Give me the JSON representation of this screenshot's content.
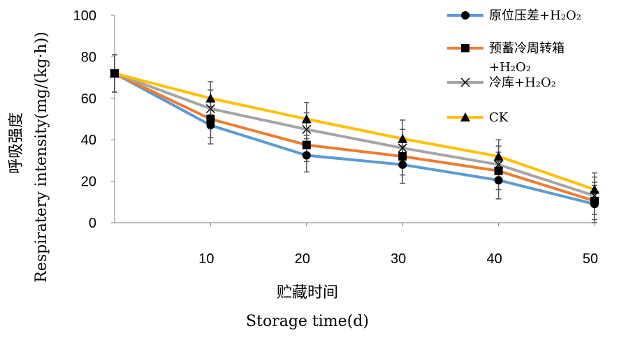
{
  "chart_data": {
    "type": "line",
    "x": [
      0,
      10,
      20,
      30,
      40,
      50
    ],
    "x_ticks": [
      "10",
      "20",
      "30",
      "40",
      "50"
    ],
    "x_tick_values": [
      10,
      20,
      30,
      40,
      50
    ],
    "y_ticks": [
      "0",
      "20",
      "40",
      "60",
      "80",
      "100"
    ],
    "y_tick_values": [
      0,
      20,
      40,
      60,
      80,
      100
    ],
    "xlim": [
      0,
      50
    ],
    "ylim": [
      0,
      100
    ],
    "xlabel_cn": "贮藏时间",
    "xlabel_en": "Storage time(d)",
    "ylabel_cn": "呼吸强度",
    "ylabel_en": "Respiratery intensity(mg/(kg·h))",
    "grid": false,
    "legend_position": "top-right",
    "series": [
      {
        "name": "原位压差+H₂O₂",
        "color": "#5B9BD5",
        "marker": "circle",
        "values": [
          72,
          47,
          32.5,
          28,
          20.5,
          9
        ],
        "errors": [
          9,
          9,
          8,
          9,
          9,
          9
        ]
      },
      {
        "name": "预蓄冷周转箱+H₂O₂",
        "color": "#ED7D31",
        "marker": "square",
        "values": [
          72,
          50,
          37.5,
          32,
          25,
          10.5
        ],
        "errors": [
          9,
          9,
          8,
          9,
          9,
          9
        ]
      },
      {
        "name": "冷库+H₂O₂",
        "color": "#A5A5A5",
        "marker": "x",
        "values": [
          72,
          55,
          45,
          36,
          28,
          13
        ],
        "errors": [
          9,
          9,
          8,
          9,
          9,
          9
        ]
      },
      {
        "name": "CK",
        "color": "#FFC000",
        "marker": "triangle",
        "values": [
          72,
          60,
          50,
          40.5,
          32,
          16
        ],
        "errors": [
          9,
          8,
          8,
          9,
          8,
          8
        ]
      }
    ]
  }
}
